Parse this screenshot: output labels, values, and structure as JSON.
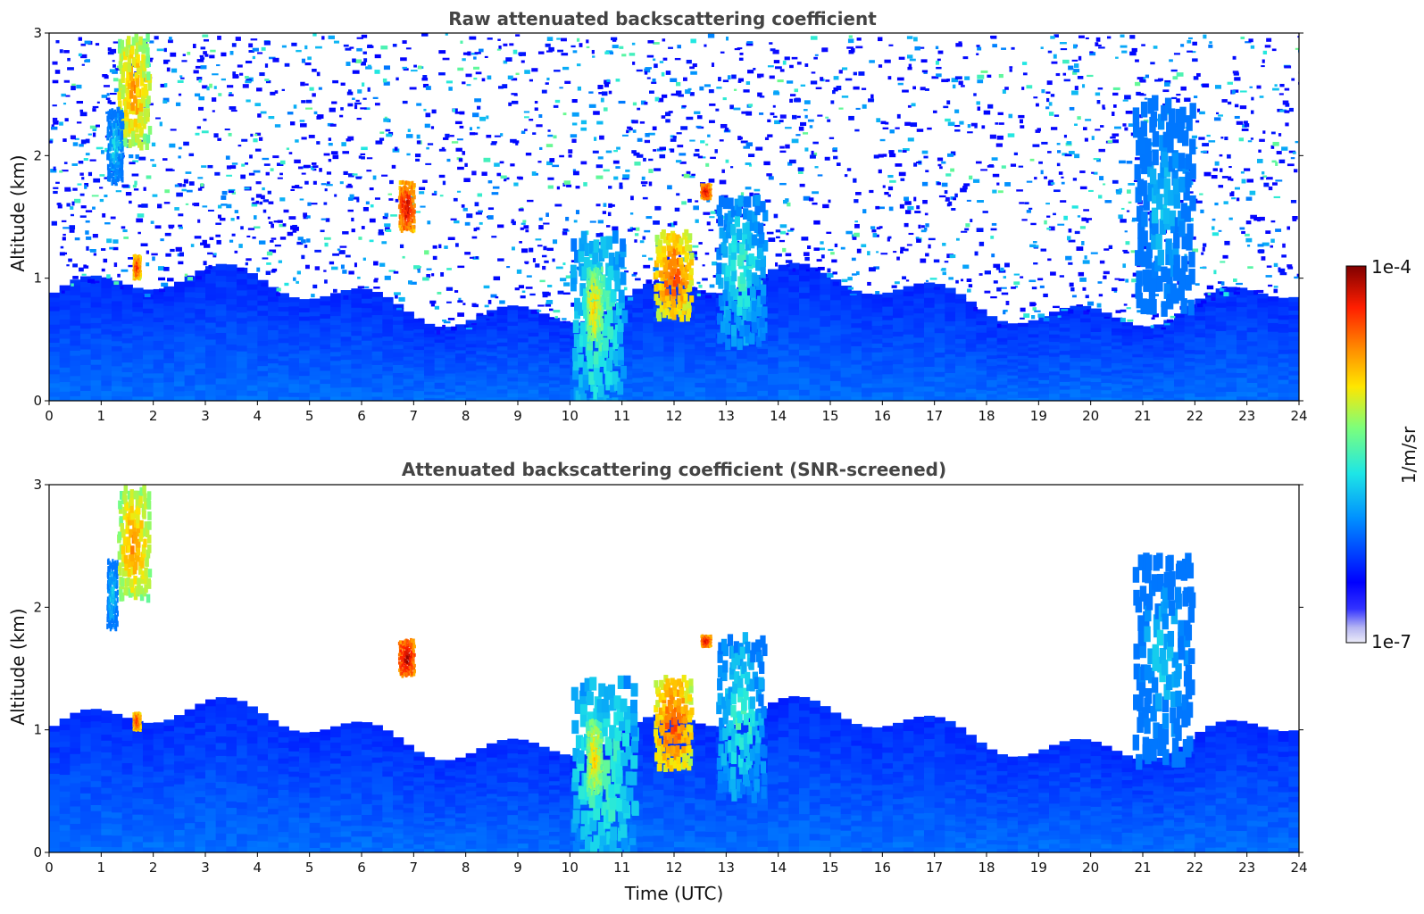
{
  "chart_data": [
    {
      "type": "heatmap",
      "title": "Raw attenuated backscattering coefficient",
      "xlabel": "",
      "ylabel": "Altitude (km)",
      "xlim": [
        0,
        24
      ],
      "ylim": [
        0,
        3
      ],
      "xticks": [
        "0",
        "1",
        "2",
        "3",
        "4",
        "5",
        "6",
        "7",
        "8",
        "9",
        "10",
        "11",
        "12",
        "13",
        "14",
        "15",
        "16",
        "17",
        "18",
        "19",
        "20",
        "21",
        "22",
        "23",
        "24"
      ],
      "yticks": [
        "0",
        "1",
        "2",
        "3"
      ],
      "noise": true,
      "features": [
        {
          "t0": 1.3,
          "t1": 1.9,
          "h0": 2.1,
          "h1": 3.0,
          "level": 0.78
        },
        {
          "t0": 1.1,
          "t1": 1.4,
          "h0": 1.8,
          "h1": 2.4,
          "level": 0.45
        },
        {
          "t0": 1.6,
          "t1": 1.75,
          "h0": 1.0,
          "h1": 1.2,
          "level": 0.9
        },
        {
          "t0": 6.7,
          "t1": 7.0,
          "h0": 1.4,
          "h1": 1.8,
          "level": 0.95
        },
        {
          "t0": 10.0,
          "t1": 11.0,
          "h0": 0.0,
          "h1": 1.4,
          "level": 0.55
        },
        {
          "t0": 10.3,
          "t1": 10.6,
          "h0": 0.5,
          "h1": 1.1,
          "level": 0.72
        },
        {
          "t0": 11.6,
          "t1": 12.3,
          "h0": 0.7,
          "h1": 1.4,
          "level": 0.85
        },
        {
          "t0": 12.5,
          "t1": 12.7,
          "h0": 1.65,
          "h1": 1.78,
          "level": 0.95
        },
        {
          "t0": 12.8,
          "t1": 13.7,
          "h0": 0.5,
          "h1": 1.7,
          "level": 0.5
        },
        {
          "t0": 20.8,
          "t1": 21.9,
          "h0": 0.8,
          "h1": 2.5,
          "level": 0.42
        }
      ]
    },
    {
      "type": "heatmap",
      "title": "Attenuated backscattering coefficient (SNR-screened)",
      "xlabel": "Time (UTC)",
      "ylabel": "Altitude (km)",
      "xlim": [
        0,
        24
      ],
      "ylim": [
        0,
        3
      ],
      "xticks": [
        "0",
        "1",
        "2",
        "3",
        "4",
        "5",
        "6",
        "7",
        "8",
        "9",
        "10",
        "11",
        "12",
        "13",
        "14",
        "15",
        "16",
        "17",
        "18",
        "19",
        "20",
        "21",
        "22",
        "23",
        "24"
      ],
      "yticks": [
        "0",
        "1",
        "2",
        "3"
      ],
      "noise": false,
      "features": [
        {
          "t0": 1.3,
          "t1": 1.9,
          "h0": 2.1,
          "h1": 3.0,
          "level": 0.78
        },
        {
          "t0": 1.1,
          "t1": 1.3,
          "h0": 1.85,
          "h1": 2.4,
          "level": 0.45
        },
        {
          "t0": 1.6,
          "t1": 1.75,
          "h0": 1.0,
          "h1": 1.15,
          "level": 0.9
        },
        {
          "t0": 6.7,
          "t1": 7.0,
          "h0": 1.45,
          "h1": 1.75,
          "level": 0.98
        },
        {
          "t0": 10.0,
          "t1": 11.2,
          "h0": 0.0,
          "h1": 1.45,
          "level": 0.55
        },
        {
          "t0": 10.3,
          "t1": 10.6,
          "h0": 0.5,
          "h1": 1.1,
          "level": 0.72
        },
        {
          "t0": 11.6,
          "t1": 12.3,
          "h0": 0.7,
          "h1": 1.45,
          "level": 0.85
        },
        {
          "t0": 12.5,
          "t1": 12.7,
          "h0": 1.68,
          "h1": 1.78,
          "level": 0.95
        },
        {
          "t0": 12.8,
          "t1": 13.7,
          "h0": 0.5,
          "h1": 1.8,
          "level": 0.5
        },
        {
          "t0": 20.8,
          "t1": 21.9,
          "h0": 0.8,
          "h1": 2.5,
          "level": 0.42
        }
      ]
    }
  ],
  "colorbar": {
    "label": "1/m/sr",
    "max_label": "1e-4",
    "min_label": "1e-7",
    "colormap": "jet",
    "min_color": "#f2f2fb",
    "max_color": "#800000"
  }
}
